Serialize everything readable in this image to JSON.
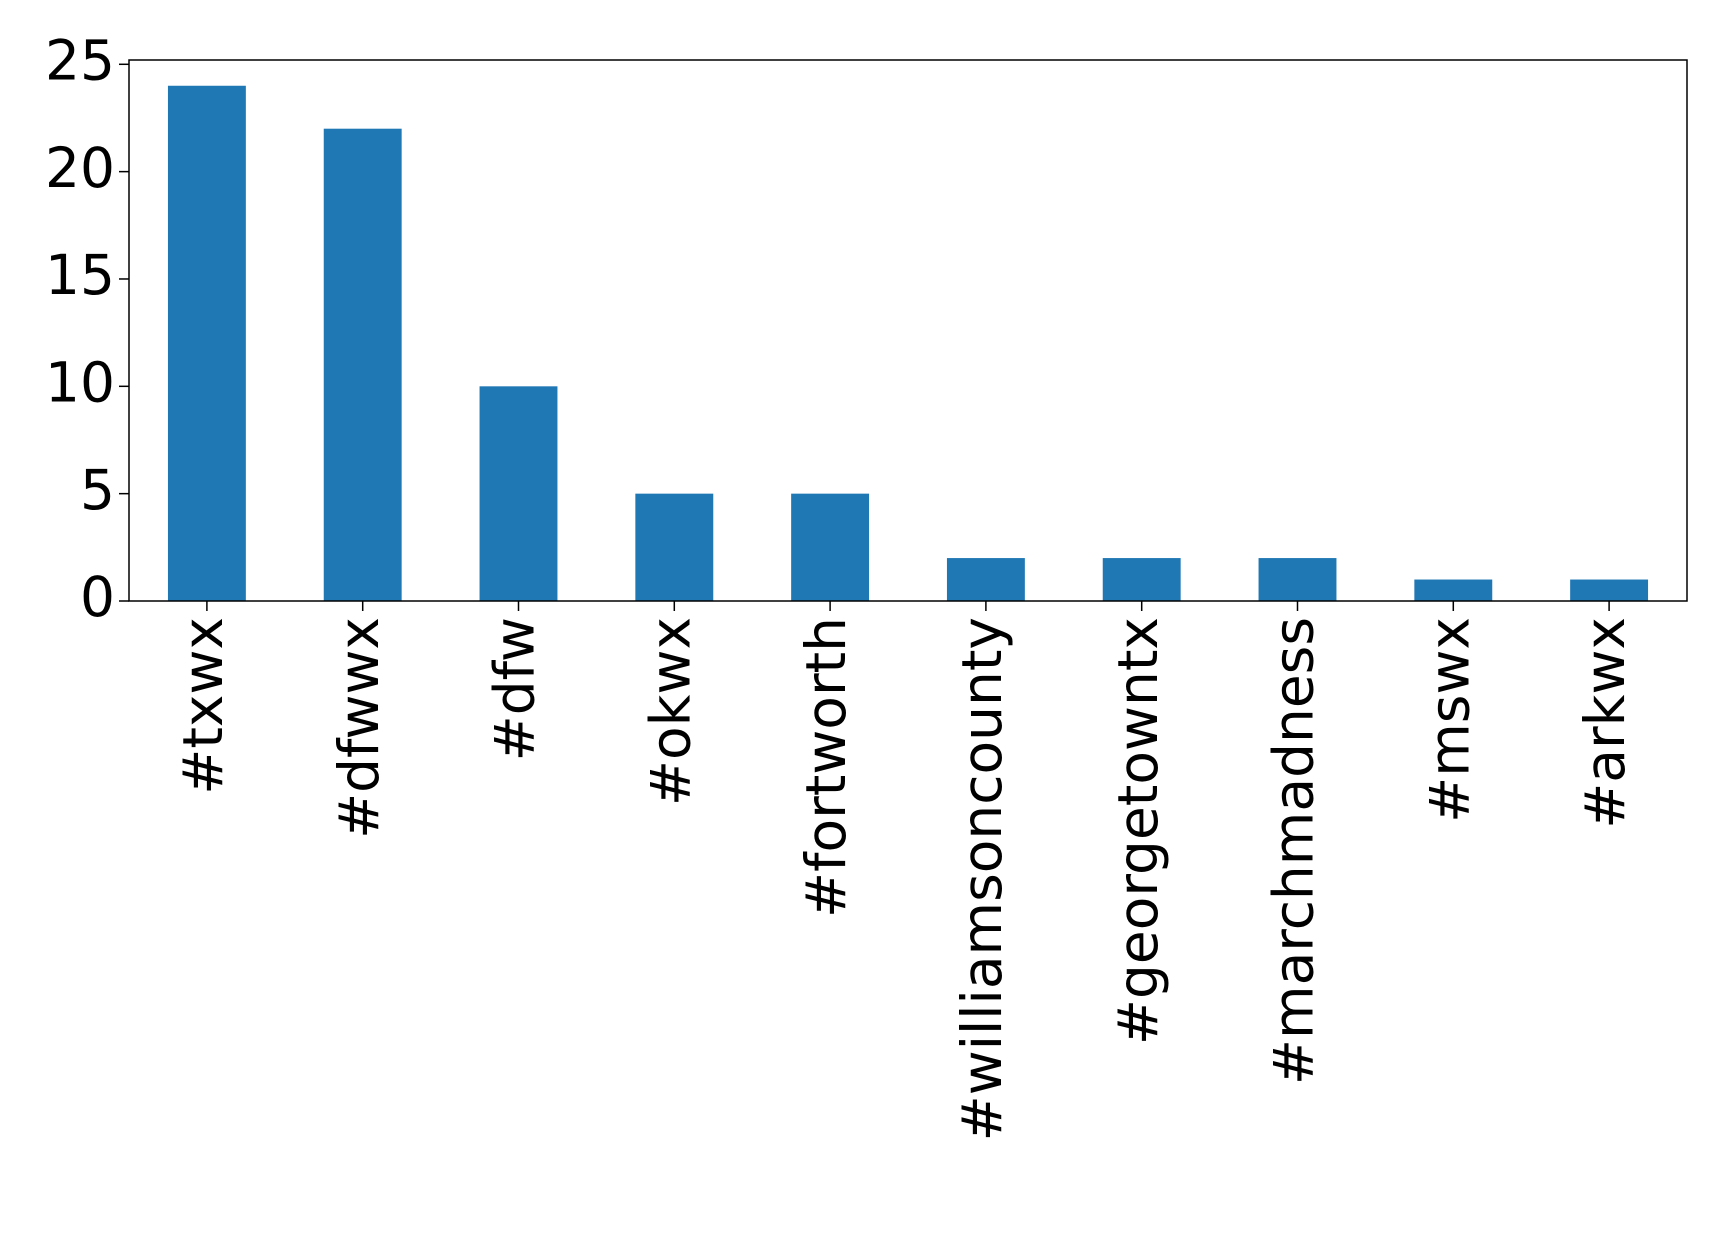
{
  "chart_data": {
    "type": "bar",
    "categories": [
      "#txwx",
      "#dfwwx",
      "#dfw",
      "#okwx",
      "#fortworth",
      "#williamsoncounty",
      "#georgetowntx",
      "#marchmadness",
      "#mswx",
      "#arkwx"
    ],
    "values": [
      24,
      22,
      10,
      5,
      5,
      2,
      2,
      2,
      1,
      1
    ],
    "color": "#1f77b4",
    "ylim": [
      0,
      25.2
    ],
    "yticks": [
      0,
      5,
      10,
      15,
      20,
      25
    ],
    "grid": false
  }
}
